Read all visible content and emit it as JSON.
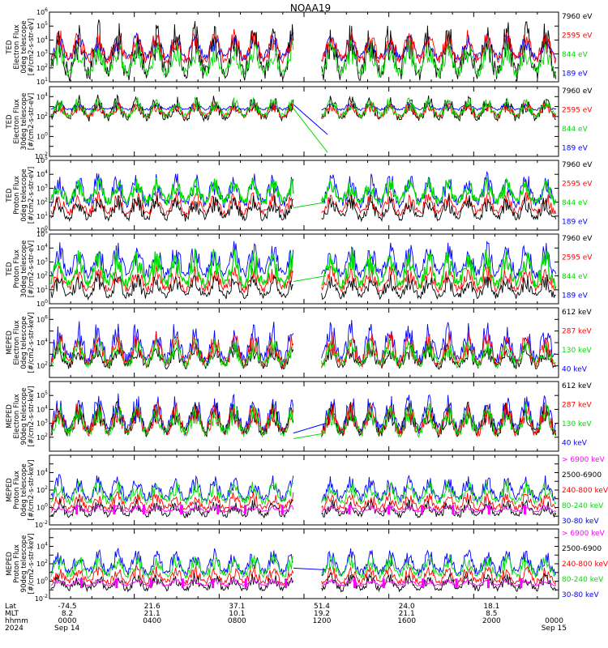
{
  "figure": {
    "title": "NOAA19",
    "footer": {
      "row_labels": [
        "Lat",
        "MLT",
        "hhmm",
        "2024"
      ],
      "columns": [
        {
          "lat": "-74.5",
          "mlt": "8.2",
          "hhmm": "0000",
          "date": "Sep 14"
        },
        {
          "lat": "21.6",
          "mlt": "21.1",
          "hhmm": "0400",
          "date": ""
        },
        {
          "lat": "37.1",
          "mlt": "10.1",
          "hhmm": "0800",
          "date": ""
        },
        {
          "lat": "51.4",
          "mlt": "19.2",
          "hhmm": "1200",
          "date": ""
        },
        {
          "lat": "24.0",
          "mlt": "21.1",
          "hhmm": "1600",
          "date": ""
        },
        {
          "lat": "18.1",
          "mlt": "8.5",
          "hhmm": "2000",
          "date": ""
        },
        {
          "lat": "",
          "mlt": "",
          "hhmm": "0000",
          "date": "Sep 15"
        }
      ]
    }
  },
  "colors": {
    "blue": "#0000ff",
    "red": "#ff0000",
    "green": "#00dd00",
    "black": "#000000",
    "magenta": "#ff00ff"
  },
  "chart_data": [
    {
      "type": "line",
      "ylabel": [
        "TED",
        "Electron Flux",
        "0deg telescope",
        "[#/cm2-s-str-eV]"
      ],
      "ylog": [
        1,
        6
      ],
      "ytick_labels": [
        "10^1",
        "10^2",
        "10^3",
        "10^4",
        "10^5",
        "10^6"
      ],
      "series": [
        {
          "name": "7960 eV",
          "color": "black"
        },
        {
          "name": "2595 eV",
          "color": "red"
        },
        {
          "name": "844 eV",
          "color": "green"
        },
        {
          "name": "189 eV",
          "color": "blue"
        }
      ]
    },
    {
      "type": "line",
      "ylabel": [
        "TED",
        "Electron Flux",
        "30deg telescope",
        "[#/cm2-s-str-eV]"
      ],
      "ylog": [
        -2,
        5
      ],
      "ytick_labels": [
        "10^-2",
        "10^0",
        "10^2",
        "10^4"
      ],
      "series": [
        {
          "name": "7960 eV",
          "color": "black"
        },
        {
          "name": "2595 eV",
          "color": "red"
        },
        {
          "name": "844 eV",
          "color": "green"
        },
        {
          "name": "189 eV",
          "color": "blue"
        }
      ]
    },
    {
      "type": "line",
      "ylabel": [
        "TED",
        "Proton Flux",
        "0deg telescope",
        "[#/cm2-s-str-eV]"
      ],
      "ylog": [
        0,
        5
      ],
      "ytick_labels": [
        "10^0",
        "10^1",
        "10^2",
        "10^3",
        "10^4",
        "10^5"
      ],
      "series": [
        {
          "name": "7960 eV",
          "color": "black"
        },
        {
          "name": "2595 eV",
          "color": "red"
        },
        {
          "name": "844 eV",
          "color": "green"
        },
        {
          "name": "189 eV",
          "color": "blue"
        }
      ]
    },
    {
      "type": "line",
      "ylabel": [
        "TED",
        "Proton Flux",
        "30deg telescope",
        "[#/cm2-s-str-eV]"
      ],
      "ylog": [
        0,
        5
      ],
      "ytick_labels": [
        "10^0",
        "10^1",
        "10^2",
        "10^3",
        "10^4",
        "10^5"
      ],
      "series": [
        {
          "name": "7960 eV",
          "color": "black"
        },
        {
          "name": "2595 eV",
          "color": "red"
        },
        {
          "name": "844 eV",
          "color": "green"
        },
        {
          "name": "189 eV",
          "color": "blue"
        }
      ]
    },
    {
      "type": "line",
      "ylabel": [
        "MEPED",
        "Electron Flux",
        "0deg telescope",
        "[#/cm2-s-str-keV]"
      ],
      "ylog": [
        1,
        7
      ],
      "ytick_labels": [
        "10^2",
        "10^4",
        "10^6"
      ],
      "series": [
        {
          "name": "612 keV",
          "color": "black"
        },
        {
          "name": "287 keV",
          "color": "red"
        },
        {
          "name": "130 keV",
          "color": "green"
        },
        {
          "name": "40 keV",
          "color": "blue"
        }
      ]
    },
    {
      "type": "line",
      "ylabel": [
        "MEPED",
        "Electron Flux",
        "90deg telescope",
        "[#/cm2-s-str-keV]"
      ],
      "ylog": [
        1,
        6
      ],
      "ytick_labels": [
        "10^2",
        "10^3",
        "10^4",
        "10^5"
      ],
      "series": [
        {
          "name": "612 keV",
          "color": "black"
        },
        {
          "name": "287 keV",
          "color": "red"
        },
        {
          "name": "130 keV",
          "color": "green"
        },
        {
          "name": "40 keV",
          "color": "blue"
        }
      ]
    },
    {
      "type": "line",
      "ylabel": [
        "MEPED",
        "Proton Flux",
        "0deg telescope",
        "[#/cm2-s-str-keV]"
      ],
      "ylog": [
        -2,
        6
      ],
      "ytick_labels": [
        "10^-2",
        "10^0",
        "10^2",
        "10^4"
      ],
      "series": [
        {
          "name": "> 6900 keV",
          "color": "magenta"
        },
        {
          "name": "2500-6900",
          "color": "black"
        },
        {
          "name": "240-800 keV",
          "color": "red"
        },
        {
          "name": "80-240 keV",
          "color": "green"
        },
        {
          "name": "30-80 keV",
          "color": "blue"
        }
      ]
    },
    {
      "type": "line",
      "ylabel": [
        "MEPED",
        "Proton Flux",
        "90deg telescope",
        "[#/cm2-s-str-keV]"
      ],
      "ylog": [
        -2,
        6
      ],
      "ytick_labels": [
        "10^-2",
        "10^0",
        "10^2",
        "10^4"
      ],
      "series": [
        {
          "name": "> 6900 keV",
          "color": "magenta"
        },
        {
          "name": "2500-6900",
          "color": "black"
        },
        {
          "name": "240-800 keV",
          "color": "red"
        },
        {
          "name": "80-240 keV",
          "color": "green"
        },
        {
          "name": "30-80 keV",
          "color": "blue"
        }
      ]
    }
  ]
}
